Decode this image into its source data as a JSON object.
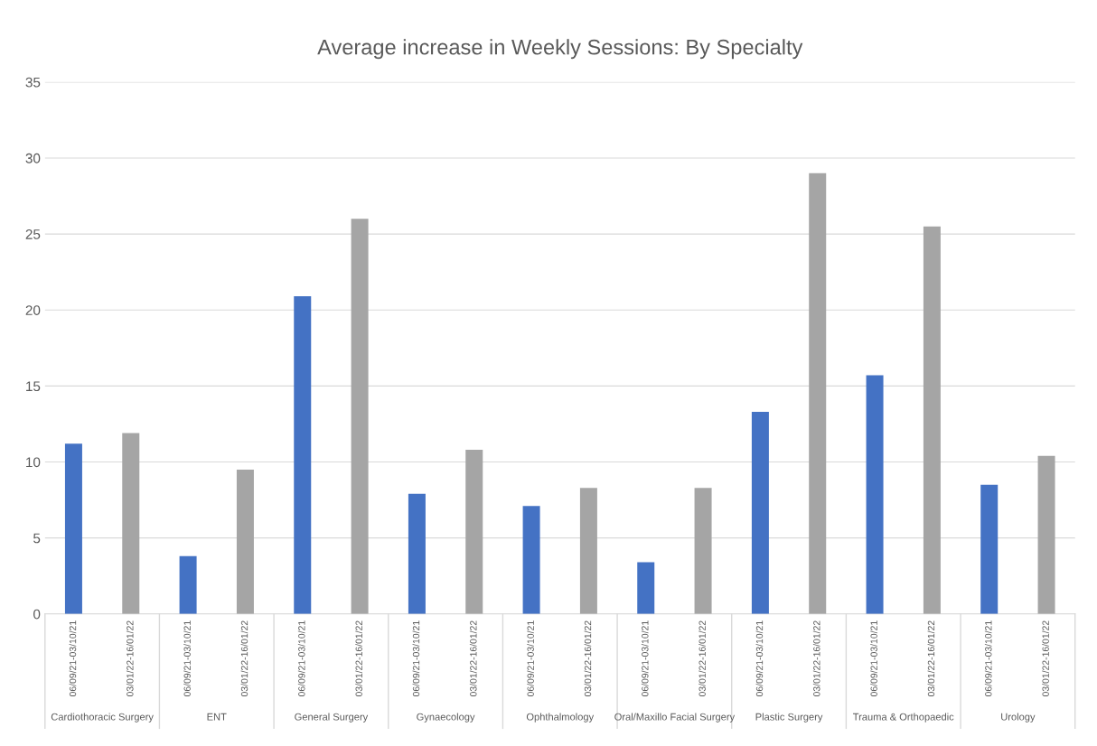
{
  "chart_data": {
    "type": "bar",
    "title": "Average increase in Weekly Sessions: By Specialty",
    "categories": [
      "Cardiothoracic Surgery",
      "ENT",
      "General Surgery",
      "Gynaecology",
      "Ophthalmology",
      "Oral/Maxillo Facial Surgery",
      "Plastic Surgery",
      "Trauma & Orthopaedic",
      "Urology"
    ],
    "series": [
      {
        "name": "06/09/21-03/10/21",
        "color": "#4472c4",
        "values": [
          11.2,
          3.8,
          20.9,
          7.9,
          7.1,
          3.4,
          13.3,
          15.7,
          8.5
        ]
      },
      {
        "name": "03/01/22-16/01/22",
        "color": "#a5a5a5",
        "values": [
          11.9,
          9.5,
          26.0,
          10.8,
          8.3,
          8.3,
          29.0,
          25.5,
          10.4
        ]
      }
    ],
    "ylim": [
      0,
      35
    ],
    "yticks": [
      0,
      5,
      10,
      15,
      20,
      25,
      30,
      35
    ],
    "grid": "y",
    "legend": false
  }
}
